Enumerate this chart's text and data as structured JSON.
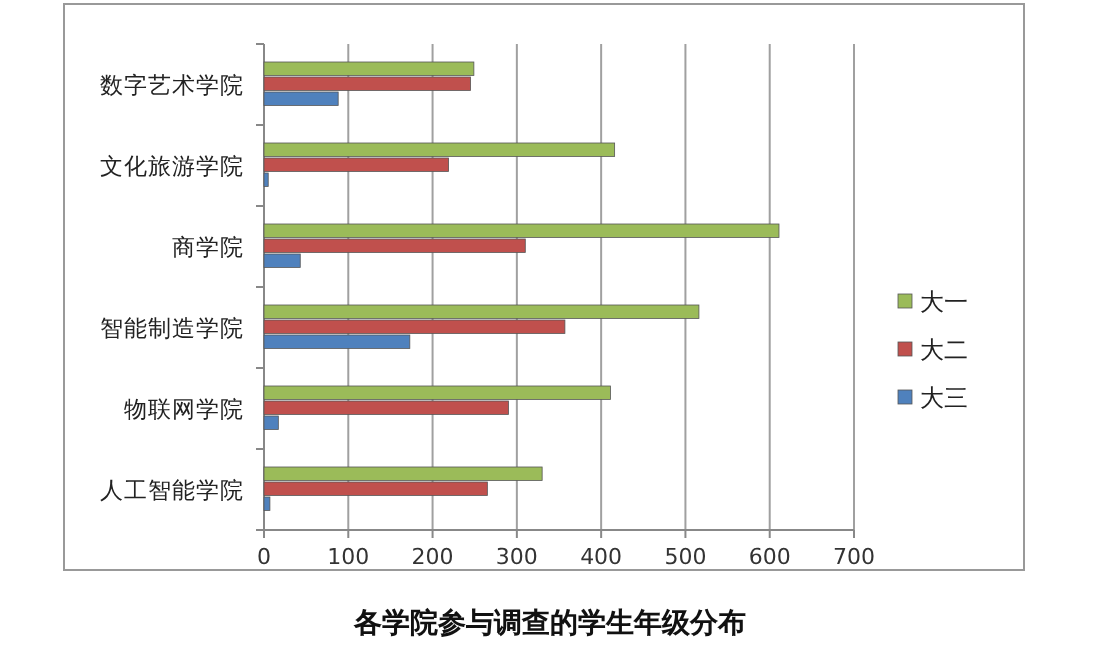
{
  "chart_data": {
    "type": "bar",
    "orientation": "horizontal",
    "title": "各学院参与调查的学生年级分布",
    "categories": [
      "数字艺术学院",
      "文化旅游学院",
      "商学院",
      "智能制造学院",
      "物联网学院",
      "人工智能学院"
    ],
    "series": [
      {
        "name": "大一",
        "color": "#9bbb59",
        "values": [
          249,
          416,
          611,
          516,
          411,
          330
        ]
      },
      {
        "name": "大二",
        "color": "#c0504d",
        "values": [
          245,
          219,
          310,
          357,
          290,
          265
        ]
      },
      {
        "name": "大三",
        "color": "#4f81bd",
        "values": [
          88,
          5,
          43,
          173,
          17,
          7
        ]
      }
    ],
    "xlim": [
      0,
      700
    ],
    "xticks": [
      0,
      100,
      200,
      300,
      400,
      500,
      600,
      700
    ],
    "grid": "x",
    "legend": "right"
  }
}
